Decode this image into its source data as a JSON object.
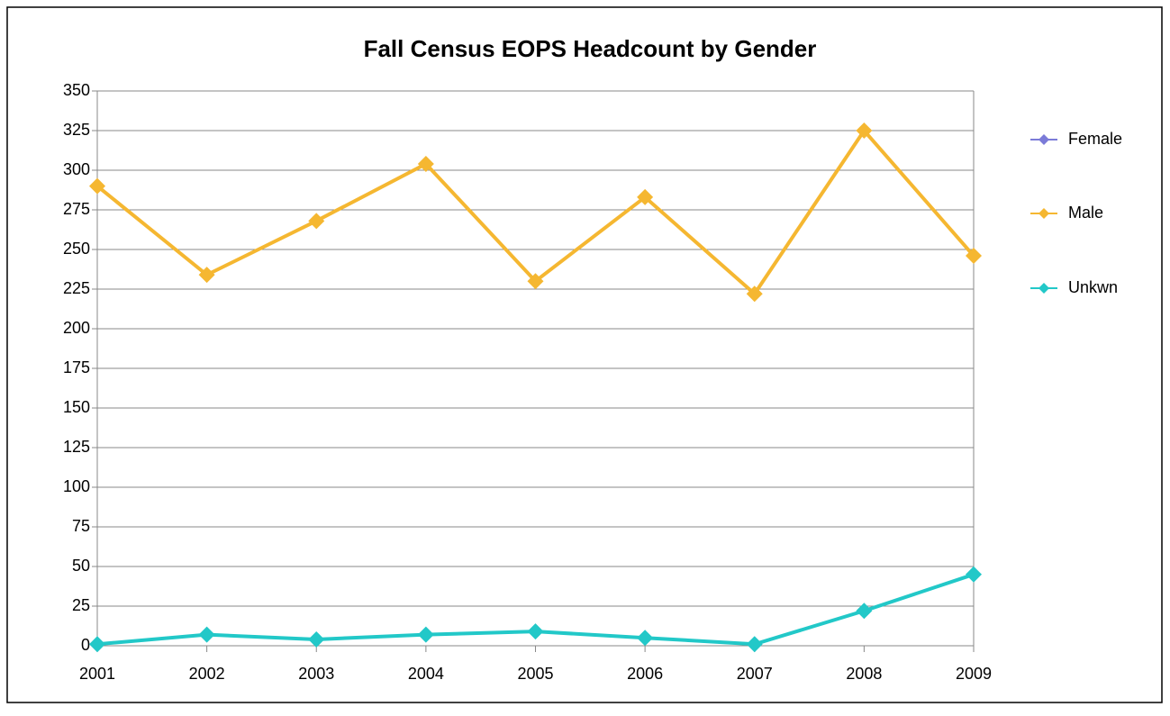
{
  "chart_data": {
    "type": "line",
    "title": "Fall Census EOPS Headcount by Gender",
    "categories": [
      "2001",
      "2002",
      "2003",
      "2004",
      "2005",
      "2006",
      "2007",
      "2008",
      "2009"
    ],
    "series": [
      {
        "name": "Female",
        "color": "#7b7bd8",
        "values": [
          null,
          null,
          null,
          null,
          null,
          null,
          null,
          null,
          null
        ]
      },
      {
        "name": "Male",
        "color": "#f5b731",
        "values": [
          290,
          234,
          268,
          304,
          230,
          283,
          222,
          325,
          246
        ]
      },
      {
        "name": "Unkwn",
        "color": "#22c8c8",
        "values": [
          1,
          7,
          4,
          7,
          9,
          5,
          1,
          22,
          45
        ]
      }
    ],
    "ylim": [
      0,
      350
    ],
    "yticks": [
      0,
      25,
      50,
      75,
      100,
      125,
      150,
      175,
      200,
      225,
      250,
      275,
      300,
      325,
      350
    ],
    "grid": true,
    "legend": "right"
  }
}
